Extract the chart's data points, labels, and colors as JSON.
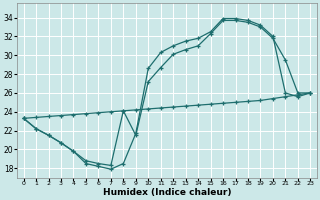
{
  "xlabel": "Humidex (Indice chaleur)",
  "bg_color": "#cce8e8",
  "grid_color": "#b0d4d4",
  "line_color": "#1e6e6e",
  "xlim": [
    -0.5,
    23.5
  ],
  "ylim": [
    17.0,
    35.5
  ],
  "yticks": [
    18,
    20,
    22,
    24,
    26,
    28,
    30,
    32,
    34
  ],
  "xticks": [
    0,
    1,
    2,
    3,
    4,
    5,
    6,
    7,
    8,
    9,
    10,
    11,
    12,
    13,
    14,
    15,
    16,
    17,
    18,
    19,
    20,
    21,
    22,
    23
  ],
  "curve1_x": [
    0,
    1,
    2,
    3,
    4,
    5,
    6,
    7,
    8,
    9,
    10,
    11,
    12,
    13,
    14,
    15,
    16,
    17,
    18,
    19,
    20,
    21,
    22,
    23
  ],
  "curve1_y": [
    23.3,
    22.2,
    21.5,
    20.7,
    19.8,
    18.5,
    18.2,
    17.9,
    18.5,
    21.7,
    28.6,
    30.3,
    31.0,
    31.5,
    31.8,
    32.5,
    33.9,
    33.9,
    33.7,
    33.2,
    32.0,
    26.0,
    25.6,
    26.0
  ],
  "curve2_x": [
    0,
    1,
    2,
    3,
    4,
    5,
    6,
    7,
    8,
    9,
    10,
    11,
    12,
    13,
    14,
    15,
    16,
    17,
    18,
    19,
    20,
    21,
    22,
    23
  ],
  "curve2_y": [
    23.3,
    22.2,
    21.5,
    20.7,
    19.8,
    18.8,
    18.5,
    18.3,
    24.1,
    21.5,
    27.2,
    28.7,
    30.1,
    30.6,
    31.0,
    32.3,
    33.7,
    33.7,
    33.5,
    33.0,
    31.8,
    29.5,
    26.0,
    26.0
  ],
  "curve3_x": [
    0,
    1,
    2,
    3,
    4,
    5,
    6,
    7,
    8,
    9,
    10,
    11,
    12,
    13,
    14,
    15,
    16,
    17,
    18,
    19,
    20,
    21,
    22,
    23
  ],
  "curve3_y": [
    23.3,
    23.4,
    23.5,
    23.6,
    23.7,
    23.8,
    23.9,
    24.0,
    24.1,
    24.2,
    24.3,
    24.4,
    24.5,
    24.6,
    24.7,
    24.8,
    24.9,
    25.0,
    25.1,
    25.2,
    25.4,
    25.6,
    25.8,
    26.0
  ]
}
